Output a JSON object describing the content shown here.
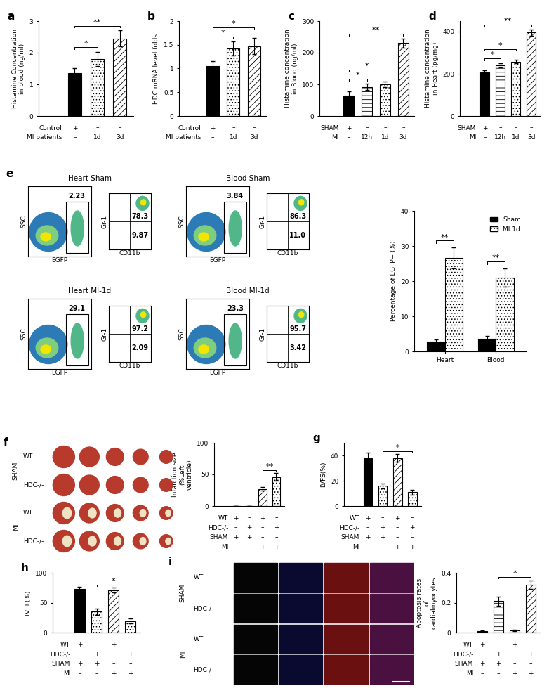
{
  "chart_data": [
    {
      "type": "bar",
      "title": "a",
      "ylabel": "Histamine Concentration in blood (ng/ml)",
      "categories": [
        null,
        null,
        null
      ],
      "values": [
        1.35,
        1.8,
        2.45
      ],
      "errors": [
        0.15,
        0.22,
        0.25
      ],
      "colors": [
        "#000000",
        "#ffffff",
        "#ffffff"
      ],
      "ylim": [
        0,
        3
      ],
      "yticks": [
        0,
        1,
        2,
        3
      ],
      "condition_rows": [
        {
          "label": "Control",
          "marks": [
            "+",
            "–",
            "–"
          ]
        },
        {
          "label": "MI patients",
          "marks": [
            "–",
            "1d",
            "3d"
          ]
        }
      ],
      "significance": [
        {
          "from": 0,
          "to": 1,
          "label": "*"
        },
        {
          "from": 0,
          "to": 2,
          "label": "**"
        }
      ]
    },
    {
      "type": "bar",
      "title": "b",
      "ylabel": "HDC mRNA level folds",
      "categories": [
        null,
        null,
        null
      ],
      "values": [
        1.05,
        1.42,
        1.47
      ],
      "errors": [
        0.1,
        0.15,
        0.17
      ],
      "colors": [
        "#000000",
        "#ffffff",
        "#ffffff"
      ],
      "ylim": [
        0,
        2
      ],
      "yticks": [
        0,
        0.5,
        1,
        1.5,
        2
      ],
      "condition_rows": [
        {
          "label": "Control",
          "marks": [
            "+",
            "–",
            "–"
          ]
        },
        {
          "label": "MI patients",
          "marks": [
            "–",
            "1d",
            "3d"
          ]
        }
      ],
      "significance": [
        {
          "from": 0,
          "to": 1,
          "label": "*"
        },
        {
          "from": 0,
          "to": 2,
          "label": "*"
        }
      ]
    },
    {
      "type": "bar",
      "title": "c",
      "ylabel": "Histamine concentration in Blood (ng/ml)",
      "categories": [
        null,
        null,
        null,
        null
      ],
      "values": [
        65,
        92,
        100,
        230
      ],
      "errors": [
        12,
        10,
        8,
        15
      ],
      "colors": [
        "#000000",
        "#ffffff",
        "#ffffff",
        "#ffffff"
      ],
      "ylim": [
        0,
        300
      ],
      "yticks": [
        0,
        100,
        200,
        300
      ],
      "condition_rows": [
        {
          "label": "SHAM",
          "marks": [
            "+",
            "–",
            "–",
            "–"
          ]
        },
        {
          "label": "MI",
          "marks": [
            "–",
            "12h",
            "1d",
            "3d"
          ]
        }
      ],
      "significance": [
        {
          "from": 0,
          "to": 1,
          "label": "*"
        },
        {
          "from": 0,
          "to": 2,
          "label": "*"
        },
        {
          "from": 0,
          "to": 3,
          "label": "**"
        }
      ]
    },
    {
      "type": "bar",
      "title": "d",
      "ylabel": "Histamine concentration in Heart (pg/mg)",
      "categories": [
        null,
        null,
        null,
        null
      ],
      "values": [
        205,
        240,
        258,
        395
      ],
      "errors": [
        10,
        10,
        8,
        15
      ],
      "colors": [
        "#000000",
        "#ffffff",
        "#ffffff",
        "#ffffff"
      ],
      "ylim": [
        0,
        450
      ],
      "yticks": [
        0,
        200,
        400
      ],
      "condition_rows": [
        {
          "label": "SHAM",
          "marks": [
            "+",
            "–",
            "–",
            "–"
          ]
        },
        {
          "label": "MI",
          "marks": [
            "–",
            "12h",
            "1d",
            "3d"
          ]
        }
      ],
      "significance": [
        {
          "from": 0,
          "to": 1,
          "label": "*"
        },
        {
          "from": 0,
          "to": 2,
          "label": "*"
        },
        {
          "from": 0,
          "to": 3,
          "label": "**"
        }
      ]
    },
    {
      "type": "flow",
      "title": "e",
      "xlabels": [
        "EGFP",
        "CD11b"
      ],
      "ylabels": [
        "SSC",
        "Gr-1"
      ],
      "plots": [
        {
          "name": "Heart Sham",
          "gate": 2.23,
          "upper_right": 78.3,
          "lower_right": 9.87
        },
        {
          "name": "Blood Sham",
          "gate": 3.84,
          "upper_right": 86.3,
          "lower_right": 11.0
        },
        {
          "name": "Heart MI-1d",
          "gate": 29.1,
          "upper_right": 97.2,
          "lower_right": 2.09
        },
        {
          "name": "Blood MI-1d",
          "gate": 23.3,
          "upper_right": 95.7,
          "lower_right": 3.42
        }
      ]
    },
    {
      "type": "bar",
      "ylabel": "Percentage of EGFP+ (%)",
      "categories": [
        "Heart",
        "Blood"
      ],
      "series": [
        {
          "name": "Sham",
          "color": "#000000",
          "values": [
            2.8,
            3.5
          ],
          "errors": [
            0.5,
            0.8
          ]
        },
        {
          "name": "MI 1d",
          "color": "#ffffff",
          "values": [
            26.5,
            21.0
          ],
          "errors": [
            3.0,
            2.6
          ]
        }
      ],
      "ylim": [
        0,
        40
      ],
      "yticks": [
        0,
        10,
        20,
        30,
        40
      ],
      "legend": "upper right",
      "significance": [
        {
          "category": 0,
          "label": "**"
        },
        {
          "category": 1,
          "label": "**"
        }
      ]
    },
    {
      "type": "image_grid",
      "title": "f",
      "columns": 5,
      "row_groups": [
        {
          "label": "SHAM",
          "rows": [
            "WT",
            "HDC-/-"
          ]
        },
        {
          "label": "MI",
          "rows": [
            "WT",
            "HDC-/-"
          ]
        }
      ]
    },
    {
      "type": "bar",
      "ylabel": "Infarction size (%Left ventricle)",
      "categories": [
        null,
        null,
        null,
        null
      ],
      "values": [
        0,
        0,
        27,
        46
      ],
      "errors": [
        0,
        0,
        3,
        6
      ],
      "colors": [
        "#000000",
        "#ffffff",
        "#ffffff",
        "#ffffff"
      ],
      "ylim": [
        0,
        100
      ],
      "yticks": [
        0,
        50,
        100
      ],
      "condition_rows": [
        {
          "label": "WT",
          "marks": [
            "+",
            "–",
            "+",
            "–"
          ]
        },
        {
          "label": "HDC-/-",
          "marks": [
            "–",
            "+",
            "–",
            "+"
          ]
        },
        {
          "label": "SHAM",
          "marks": [
            "+",
            "+",
            "–",
            "–"
          ]
        },
        {
          "label": "MI",
          "marks": [
            "–",
            "–",
            "+",
            "+"
          ]
        }
      ],
      "significance": [
        {
          "from": 2,
          "to": 3,
          "label": "**"
        }
      ]
    },
    {
      "type": "bar",
      "title": "g",
      "ylabel": "LVFS(%)",
      "categories": [
        null,
        null,
        null,
        null
      ],
      "values": [
        38,
        16,
        38,
        11
      ],
      "errors": [
        4,
        2,
        3,
        2
      ],
      "colors": [
        "#000000",
        "#ffffff",
        "#ffffff",
        "#ffffff"
      ],
      "ylim": [
        0,
        50
      ],
      "yticks": [
        0,
        20,
        40
      ],
      "condition_rows": [
        {
          "label": "WT",
          "marks": [
            "+",
            "–",
            "+",
            "–"
          ]
        },
        {
          "label": "HDC-/-",
          "marks": [
            "–",
            "+",
            "–",
            "+"
          ]
        },
        {
          "label": "SHAM",
          "marks": [
            "+",
            "+",
            "–",
            "–"
          ]
        },
        {
          "label": "MI",
          "marks": [
            "–",
            "–",
            "+",
            "+"
          ]
        }
      ],
      "significance": [
        {
          "from": 1,
          "to": 3,
          "label": "*"
        }
      ]
    },
    {
      "type": "bar",
      "title": "h",
      "ylabel": "LVEF(%)",
      "categories": [
        null,
        null,
        null,
        null
      ],
      "values": [
        73,
        35,
        71,
        19
      ],
      "errors": [
        3,
        5,
        4,
        4
      ],
      "colors": [
        "#000000",
        "#ffffff",
        "#ffffff",
        "#ffffff"
      ],
      "ylim": [
        0,
        100
      ],
      "yticks": [
        0,
        50,
        100
      ],
      "condition_rows": [
        {
          "label": "WT",
          "marks": [
            "+",
            "–",
            "+",
            "–"
          ]
        },
        {
          "label": "HDC-/-",
          "marks": [
            "–",
            "+",
            "–",
            "+"
          ]
        },
        {
          "label": "SHAM",
          "marks": [
            "+",
            "+",
            "–",
            "–"
          ]
        },
        {
          "label": "MI",
          "marks": [
            "–",
            "–",
            "+",
            "+"
          ]
        }
      ],
      "significance": [
        {
          "from": 1,
          "to": 3,
          "label": "*"
        }
      ]
    },
    {
      "type": "image_grid",
      "title": "i",
      "columns": 4,
      "row_groups": [
        {
          "label": "SHAM",
          "rows": [
            "WT",
            "HDC-/-"
          ]
        },
        {
          "label": "MI",
          "rows": [
            "WT",
            "HDC-/-"
          ]
        }
      ]
    },
    {
      "type": "bar",
      "ylabel": "Apoptosis rates of cardialmyocytes",
      "categories": [
        null,
        null,
        null,
        null
      ],
      "values": [
        0.01,
        0.21,
        0.015,
        0.32
      ],
      "errors": [
        0.005,
        0.03,
        0.005,
        0.03
      ],
      "colors": [
        "#000000",
        "#ffffff",
        "#ffffff",
        "#ffffff"
      ],
      "ylim": [
        0,
        0.4
      ],
      "yticks": [
        0,
        0.2,
        0.4
      ],
      "condition_rows": [
        {
          "label": "WT",
          "marks": [
            "+",
            "–",
            "+",
            "–"
          ]
        },
        {
          "label": "HDC-/-",
          "marks": [
            "–",
            "+",
            "–",
            "+"
          ]
        },
        {
          "label": "SHAM",
          "marks": [
            "+",
            "+",
            "–",
            "–"
          ]
        },
        {
          "label": "MI",
          "marks": [
            "–",
            "–",
            "+",
            "+"
          ]
        }
      ],
      "significance": [
        {
          "from": 1,
          "to": 3,
          "label": "*"
        }
      ]
    }
  ]
}
